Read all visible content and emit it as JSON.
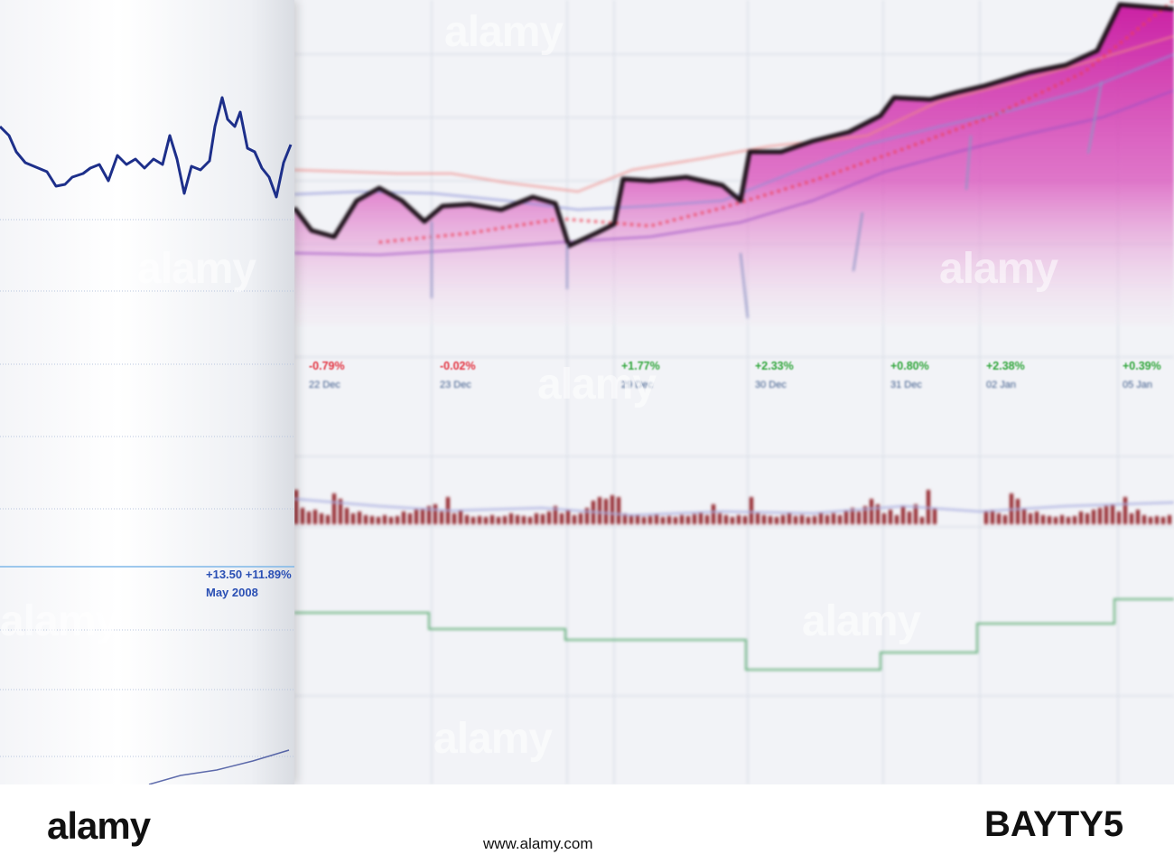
{
  "scene": {
    "description_colors": {
      "area_fill": "#cc1fa6",
      "price_line": "#1c1018",
      "volume_bars": "#8f1c23",
      "step_line": "#63b07a",
      "sheet_line": "#1d2f8a",
      "neg": "#e2323f",
      "pos": "#2fa53a"
    }
  },
  "sheet": {
    "change": "+13.50 +11.89%",
    "period": "May 2008"
  },
  "sessions": [
    {
      "pct": "-0.79%",
      "date": "22 Dec",
      "sign": "neg"
    },
    {
      "pct": "-0.02%",
      "date": "23 Dec",
      "sign": "neg"
    },
    {
      "pct": "+1.77%",
      "date": "29 Dec",
      "sign": "pos"
    },
    {
      "pct": "+2.33%",
      "date": "30 Dec",
      "sign": "pos"
    },
    {
      "pct": "+0.80%",
      "date": "31 Dec",
      "sign": "pos"
    },
    {
      "pct": "+2.38%",
      "date": "02 Jan",
      "sign": "pos"
    },
    {
      "pct": "+0.39%",
      "date": "05 Jan",
      "sign": "pos"
    }
  ],
  "watermark": {
    "text": "alamy"
  },
  "footer": {
    "logo": "alamy",
    "image_id": "BAYTY5",
    "url": "www.alamy.com"
  }
}
